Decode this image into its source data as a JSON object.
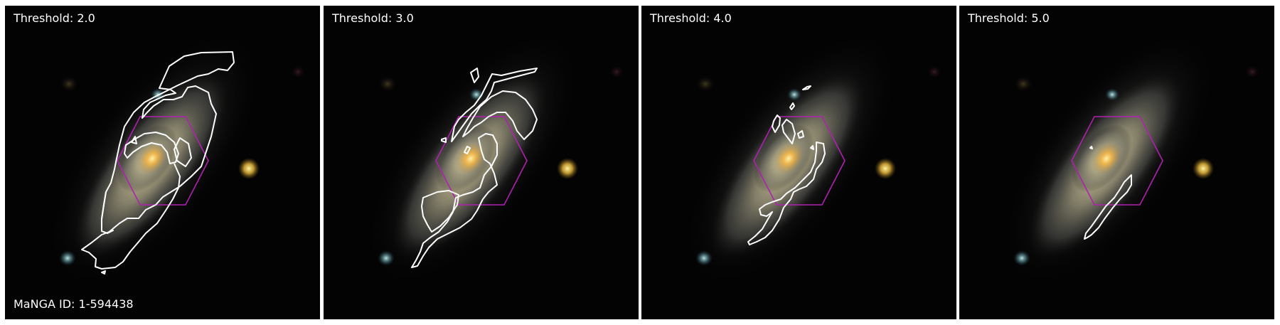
{
  "panels": [
    {
      "label": "Threshold: 2.0",
      "threshold": 2.0
    },
    {
      "label": "Threshold: 3.0",
      "threshold": 3.0
    },
    {
      "label": "Threshold: 4.0",
      "threshold": 4.0
    },
    {
      "label": "Threshold: 5.0",
      "threshold": 5.0
    }
  ],
  "manga_id_label": "MaNGA ID: 1-594438",
  "colors": {
    "background": "#000000",
    "contour": "#ffffff",
    "ifu_hexagon": "#b020b0",
    "galaxy_core": "#ffc445",
    "galaxy_disk": "#a8a890",
    "companion_star": "#e0b23a",
    "blue_knot": "#8fd0e0",
    "divider": "#ffffff"
  }
}
